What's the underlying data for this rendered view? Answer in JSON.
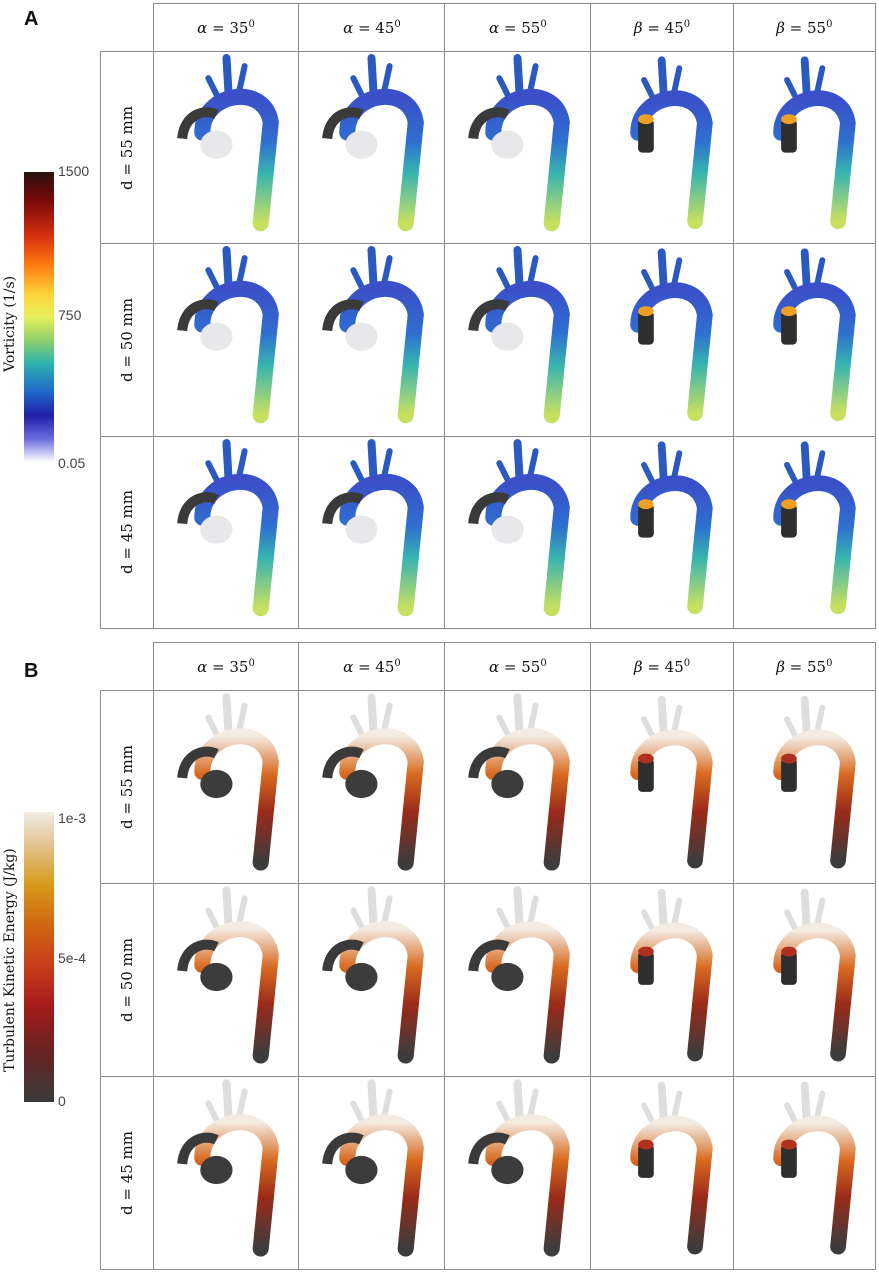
{
  "panels": [
    {
      "letter": "A",
      "colorbar": {
        "title": "Vorticity  (1/s)",
        "ticks": [
          "1500",
          "750",
          "0.05"
        ],
        "colormap": "vorticity-rainbow"
      },
      "columns": [
        {
          "symbol": "α",
          "value": " = 35",
          "sup": "0"
        },
        {
          "symbol": "α",
          "value": " = 45",
          "sup": "0"
        },
        {
          "symbol": "α",
          "value": " = 55",
          "sup": "0"
        },
        {
          "symbol": "β",
          "value": " = 45",
          "sup": "0"
        },
        {
          "symbol": "β",
          "value": " = 55",
          "sup": "0"
        }
      ],
      "rows": [
        "d = 55 mm",
        "d = 50 mm",
        "d = 45 mm"
      ]
    },
    {
      "letter": "B",
      "colorbar": {
        "title": "Turbulent Kinetic Energy (J/kg)",
        "ticks": [
          "1e-3",
          "5e-4",
          "0"
        ],
        "colormap": "tke-heat"
      },
      "columns": [
        {
          "symbol": "α",
          "value": " = 35",
          "sup": "0"
        },
        {
          "symbol": "α",
          "value": " = 45",
          "sup": "0"
        },
        {
          "symbol": "α",
          "value": " = 55",
          "sup": "0"
        },
        {
          "symbol": "β",
          "value": " = 45",
          "sup": "0"
        },
        {
          "symbol": "β",
          "value": " = 55",
          "sup": "0"
        }
      ],
      "rows": [
        "d = 55 mm",
        "d = 50 mm",
        "d = 45 mm"
      ]
    }
  ]
}
